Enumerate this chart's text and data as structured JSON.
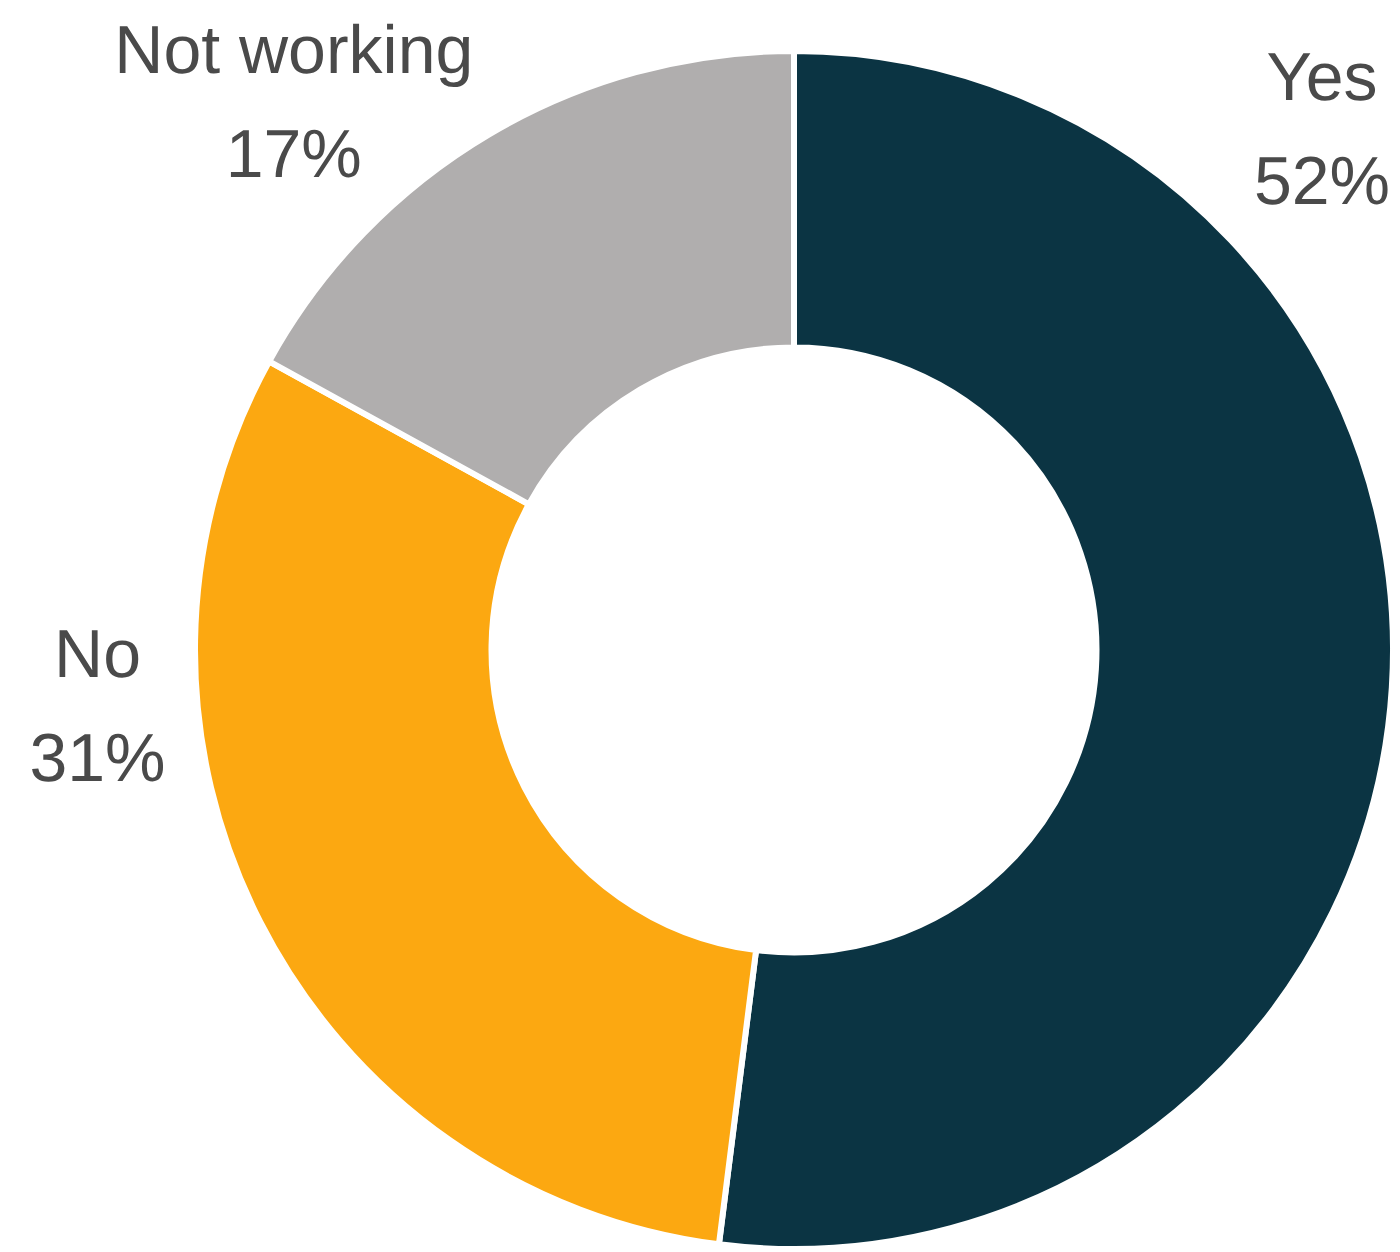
{
  "chart_data": {
    "type": "donut",
    "categories": [
      "Yes",
      "No",
      "Not working"
    ],
    "values": [
      52,
      31,
      17
    ],
    "value_labels": [
      "52%",
      "31%",
      "17%"
    ],
    "colors": [
      "#0b3443",
      "#fca811",
      "#b0aeae"
    ],
    "legend": false
  }
}
